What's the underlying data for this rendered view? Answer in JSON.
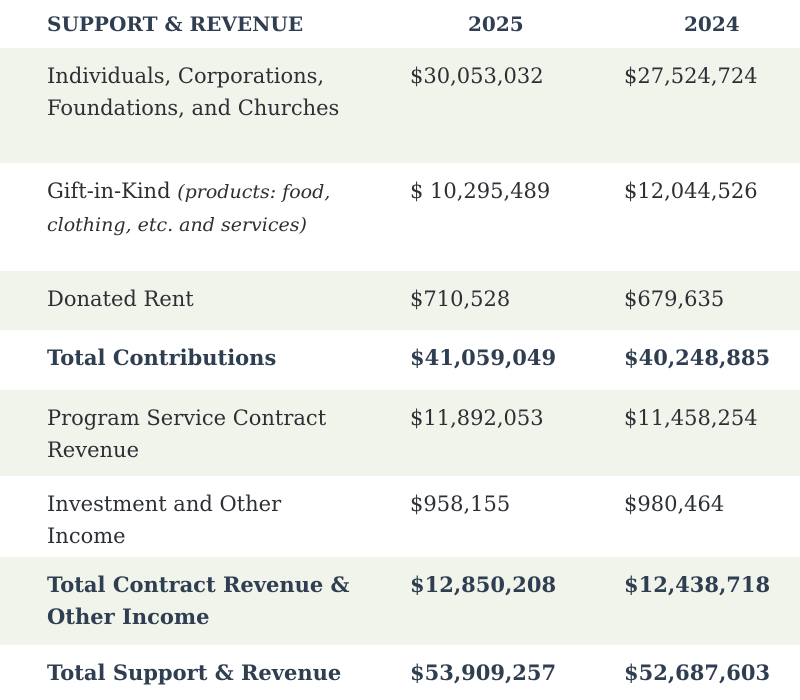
{
  "header": {
    "label": "SUPPORT & REVENUE",
    "col_2025": "2025",
    "col_2024": "2024"
  },
  "rows": [
    {
      "label": "Individuals, Corporations, Foundations, and Churches",
      "v2025": "$30,053,032",
      "v2024": "$27,524,724"
    },
    {
      "label": "Gift-in-Kind",
      "note": "(products: food, clothing, etc. and services)",
      "v2025": "$ 10,295,489",
      "v2024": "$12,044,526"
    },
    {
      "label": "Donated Rent",
      "v2025": "$710,528",
      "v2024": "$679,635"
    },
    {
      "label": "Total Contributions",
      "v2025": "$41,059,049",
      "v2024": "$40,248,885"
    },
    {
      "label": "Program Service Contract Revenue",
      "v2025": "$11,892,053",
      "v2024": "$11,458,254"
    },
    {
      "label": "Investment and Other Income",
      "v2025": "$958,155",
      "v2024": "$980,464"
    },
    {
      "label": "Total Contract Revenue & Other Income",
      "v2025": "$12,850,208",
      "v2024": "$12,438,718"
    },
    {
      "label": "Total Support & Revenue",
      "v2025": "$53,909,257",
      "v2024": "$52,687,603"
    }
  ],
  "colors": {
    "shade": "#f1f4eb",
    "text": "#2c3035",
    "bold_text": "#2f3e50"
  }
}
